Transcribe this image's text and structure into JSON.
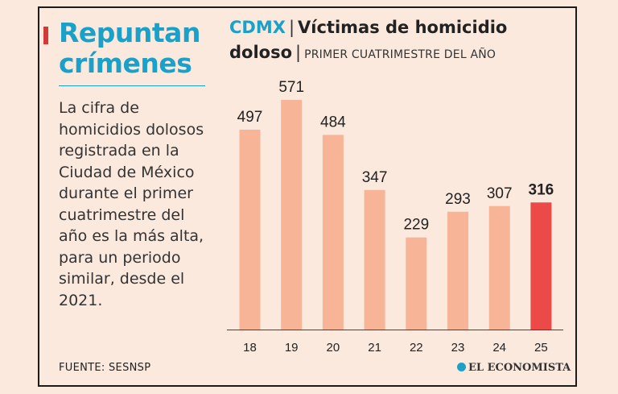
{
  "headline": {
    "line1": "Repuntan",
    "line2": "crímenes"
  },
  "description": "La cifra de homicidios dolosos registrada en la Ciudad de México durante el primer cuatrimestre del año es la más alta, para un periodo similar, desde el 2021.",
  "title": {
    "region": "CDMX",
    "separator": "|",
    "line1_rest": "Víctimas de homicidio",
    "line2": "doloso",
    "subtitle": "PRIMER CUATRIMESTRE DEL AÑO"
  },
  "source": "FUENTE: SESNSP",
  "logo": "EL ECONOMISTA",
  "colors": {
    "bar": "#f7b497",
    "highlight": "#ec4a48",
    "accent": "#1aa1c9"
  },
  "chart_data": {
    "type": "bar",
    "categories": [
      "18",
      "19",
      "20",
      "21",
      "22",
      "23",
      "24",
      "25"
    ],
    "values": [
      497,
      571,
      484,
      347,
      229,
      293,
      307,
      316
    ],
    "highlight_index": 7,
    "ylim": [
      0,
      571
    ],
    "grid": false,
    "legend": "none"
  }
}
